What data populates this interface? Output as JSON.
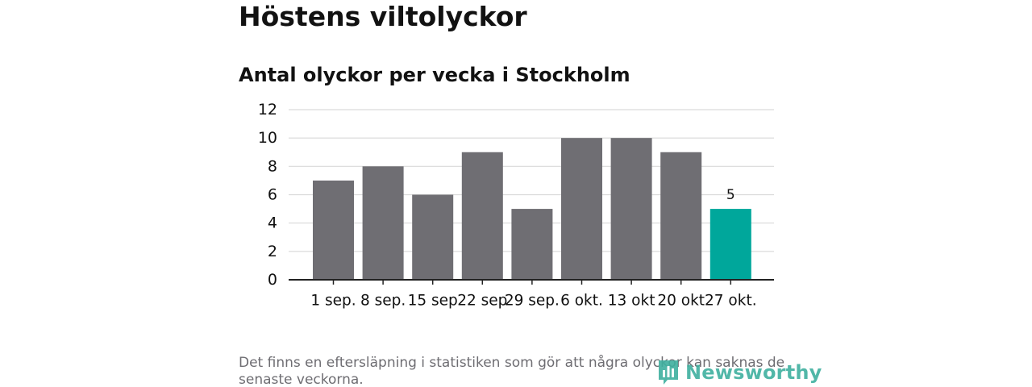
{
  "title": "Höstens viltolyckor",
  "subtitle": "Antal olyckor per vecka i Stockholm",
  "footnote": "Det finns en eftersläpning i statistiken som gör att några olyckor kan saknas de senaste veckorna.",
  "logo": {
    "text": "Newsworthy",
    "icon": "newsworthy-logo-icon"
  },
  "colors": {
    "bar": "#6f6e73",
    "highlight": "#00a79b",
    "grid": "#d9d9d9",
    "axis": "#222222"
  },
  "chart_data": {
    "type": "bar",
    "categories": [
      "1 sep.",
      "8 sep.",
      "15 sep",
      "22 sep",
      "29 sep.",
      "6 okt.",
      "13 okt",
      "20 okt",
      "27 okt."
    ],
    "values": [
      7,
      8,
      6,
      9,
      5,
      10,
      10,
      9,
      5
    ],
    "highlight_index": 8,
    "highlight_label": "5",
    "ylim": [
      0,
      12
    ],
    "yticks": [
      0,
      2,
      4,
      6,
      8,
      10,
      12
    ],
    "grid": true,
    "xlabel": "",
    "ylabel": ""
  }
}
